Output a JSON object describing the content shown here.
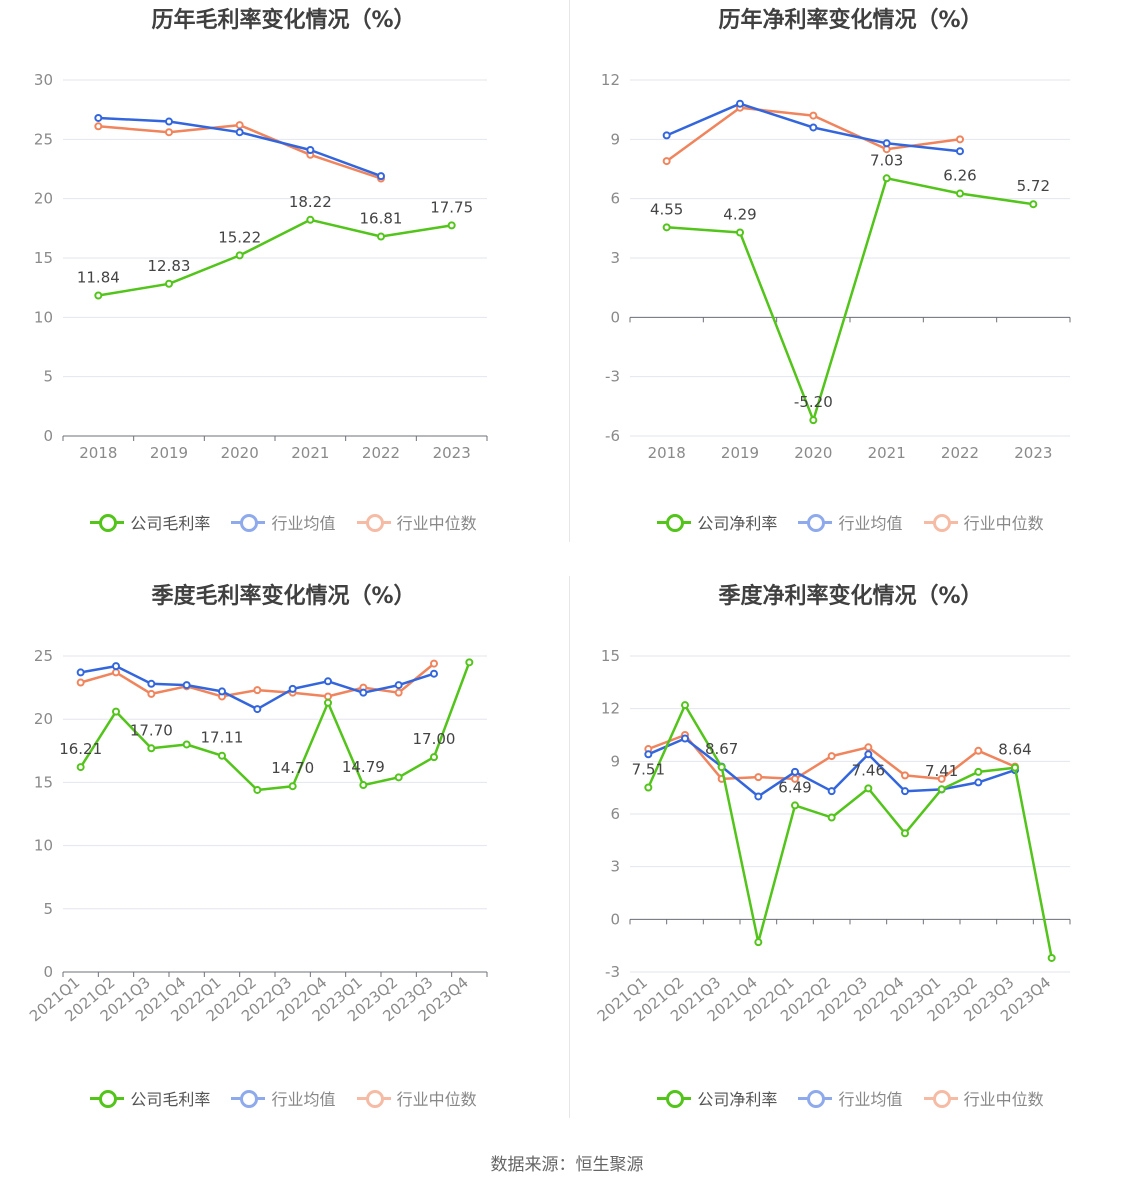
{
  "source_text": "数据来源：恒生聚源",
  "legend_colors": {
    "company": "#52c41a",
    "avg": "#3366dd",
    "median": "#f0845c"
  },
  "chart_data": [
    {
      "id": "annual-gross",
      "type": "line",
      "title": "历年毛利率变化情况（%）",
      "categories": [
        "2018",
        "2019",
        "2020",
        "2021",
        "2022",
        "2023"
      ],
      "ylim": [
        0,
        30
      ],
      "yticks": [
        "0",
        "5",
        "10",
        "15",
        "20",
        "25",
        "30"
      ],
      "ytick_values": [
        0,
        5,
        10,
        15,
        20,
        25,
        30
      ],
      "grid": true,
      "legend_position": "bottom",
      "series": [
        {
          "name": "公司毛利率",
          "key": "company",
          "values": [
            11.84,
            12.83,
            15.22,
            18.22,
            16.81,
            17.75
          ],
          "labels": [
            "11.84",
            "12.83",
            "15.22",
            "18.22",
            "16.81",
            "17.75"
          ]
        },
        {
          "name": "行业均值",
          "key": "avg",
          "values": [
            26.8,
            26.5,
            25.6,
            24.1,
            21.9,
            null
          ]
        },
        {
          "name": "行业中位数",
          "key": "median",
          "values": [
            26.1,
            25.6,
            26.2,
            23.7,
            21.7,
            null
          ]
        }
      ]
    },
    {
      "id": "annual-net",
      "type": "line",
      "title": "历年净利率变化情况（%）",
      "categories": [
        "2018",
        "2019",
        "2020",
        "2021",
        "2022",
        "2023"
      ],
      "ylim": [
        -6,
        12
      ],
      "yticks": [
        "-6",
        "-3",
        "0",
        "3",
        "6",
        "9",
        "12"
      ],
      "ytick_values": [
        -6,
        -3,
        0,
        3,
        6,
        9,
        12
      ],
      "grid": true,
      "legend_position": "bottom",
      "series": [
        {
          "name": "公司净利率",
          "key": "company",
          "values": [
            4.55,
            4.29,
            -5.2,
            7.03,
            6.26,
            5.72
          ],
          "labels": [
            "4.55",
            "4.29",
            "-5.20",
            "7.03",
            "6.26",
            "5.72"
          ]
        },
        {
          "name": "行业均值",
          "key": "avg",
          "values": [
            9.2,
            10.8,
            9.6,
            8.8,
            8.4,
            null
          ]
        },
        {
          "name": "行业中位数",
          "key": "median",
          "values": [
            7.9,
            10.6,
            10.2,
            8.5,
            9.0,
            null
          ]
        }
      ]
    },
    {
      "id": "quarter-gross",
      "type": "line",
      "title": "季度毛利率变化情况（%）",
      "categories": [
        "2021Q1",
        "2021Q2",
        "2021Q3",
        "2021Q4",
        "2022Q1",
        "2022Q2",
        "2022Q3",
        "2022Q4",
        "2023Q1",
        "2023Q2",
        "2023Q3",
        "2023Q4"
      ],
      "ylim": [
        0,
        25
      ],
      "yticks": [
        "0",
        "5",
        "10",
        "15",
        "20",
        "25"
      ],
      "ytick_values": [
        0,
        5,
        10,
        15,
        20,
        25
      ],
      "grid": true,
      "legend_position": "bottom",
      "series": [
        {
          "name": "公司毛利率",
          "key": "company",
          "values": [
            16.21,
            20.6,
            17.7,
            18.0,
            17.11,
            14.4,
            14.7,
            21.3,
            14.79,
            15.4,
            17.0,
            24.5
          ],
          "labels": [
            "16.21",
            "",
            "17.70",
            "",
            "17.11",
            "",
            "14.70",
            "",
            "14.79",
            "",
            "17.00",
            ""
          ]
        },
        {
          "name": "行业均值",
          "key": "avg",
          "values": [
            23.7,
            24.2,
            22.8,
            22.7,
            22.2,
            20.8,
            22.4,
            23.0,
            22.1,
            22.7,
            23.6,
            null
          ]
        },
        {
          "name": "行业中位数",
          "key": "median",
          "values": [
            22.9,
            23.7,
            22.0,
            22.6,
            21.8,
            22.3,
            22.1,
            21.8,
            22.5,
            22.1,
            24.4,
            null
          ]
        }
      ]
    },
    {
      "id": "quarter-net",
      "type": "line",
      "title": "季度净利率变化情况（%）",
      "categories": [
        "2021Q1",
        "2021Q2",
        "2021Q3",
        "2021Q4",
        "2022Q1",
        "2022Q2",
        "2022Q3",
        "2022Q4",
        "2023Q1",
        "2023Q2",
        "2023Q3",
        "2023Q4"
      ],
      "ylim": [
        -3,
        15
      ],
      "yticks": [
        "-3",
        "0",
        "3",
        "6",
        "9",
        "12",
        "15"
      ],
      "ytick_values": [
        -3,
        0,
        3,
        6,
        9,
        12,
        15
      ],
      "grid": true,
      "legend_position": "bottom",
      "series": [
        {
          "name": "公司净利率",
          "key": "company",
          "values": [
            7.51,
            12.2,
            8.67,
            -1.3,
            6.49,
            5.8,
            7.46,
            4.9,
            7.41,
            8.4,
            8.64,
            -2.2
          ],
          "labels": [
            "7.51",
            "",
            "8.67",
            "",
            "6.49",
            "",
            "7.46",
            "",
            "7.41",
            "",
            "8.64",
            ""
          ]
        },
        {
          "name": "行业均值",
          "key": "avg",
          "values": [
            9.4,
            10.3,
            8.7,
            7.0,
            8.4,
            7.3,
            9.4,
            7.3,
            7.4,
            7.8,
            8.5,
            null
          ]
        },
        {
          "name": "行业中位数",
          "key": "median",
          "values": [
            9.7,
            10.5,
            8.0,
            8.1,
            8.0,
            9.3,
            9.8,
            8.2,
            8.0,
            9.6,
            8.7,
            null
          ]
        }
      ]
    }
  ]
}
